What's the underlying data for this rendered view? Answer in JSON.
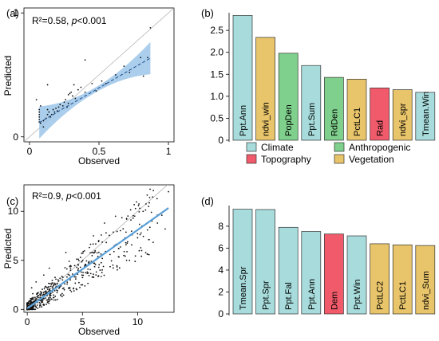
{
  "colors": {
    "Climate": "#a8dcdc",
    "Anthropogenic": "#7fd08c",
    "Topography": "#f05a6a",
    "Vegetation": "#e8c46a",
    "fit_line": "#1e4f8a",
    "ci_band": "#8fbde6",
    "points": "#111111",
    "identity": "#aaaaaa"
  },
  "legend": {
    "items": [
      {
        "name": "Climate",
        "color": "#a8dcdc"
      },
      {
        "name": "Anthropogenic",
        "color": "#7fd08c"
      },
      {
        "name": "Topography",
        "color": "#f05a6a"
      },
      {
        "name": "Vegetation",
        "color": "#e8c46a"
      }
    ]
  },
  "chart_data": [
    {
      "panel": "(a)",
      "type": "scatter",
      "annotation": {
        "r2": "R²=0.58, ",
        "p_letter": "p",
        "p_rest": "<0.001"
      },
      "xlabel": "Observed",
      "ylabel": "Predicted",
      "xlim": [
        -0.04,
        1.04
      ],
      "ylim": [
        -0.04,
        1.04
      ],
      "xticks": [
        0,
        0.5,
        1
      ],
      "xtick_labels": [
        "0",
        "0.5",
        "1"
      ],
      "yticks": [
        0,
        1
      ],
      "ytick_labels": [
        "0",
        "1"
      ],
      "fit": {
        "slope": 0.65,
        "intercept": 0.07,
        "x_range": [
          0.07,
          0.87
        ]
      },
      "points": [
        [
          0.07,
          0.12
        ],
        [
          0.07,
          0.14
        ],
        [
          0.07,
          0.16
        ],
        [
          0.07,
          0.18
        ],
        [
          0.07,
          0.2
        ],
        [
          0.07,
          0.22
        ],
        [
          0.08,
          0.25
        ],
        [
          0.08,
          0.11
        ],
        [
          0.1,
          0.13
        ],
        [
          0.12,
          0.15
        ],
        [
          0.13,
          0.18
        ],
        [
          0.13,
          0.22
        ],
        [
          0.13,
          0.42
        ],
        [
          0.14,
          0.2
        ],
        [
          0.15,
          0.16
        ],
        [
          0.16,
          0.18
        ],
        [
          0.17,
          0.22
        ],
        [
          0.18,
          0.2
        ],
        [
          0.19,
          0.23
        ],
        [
          0.2,
          0.21
        ],
        [
          0.21,
          0.24
        ],
        [
          0.22,
          0.26
        ],
        [
          0.24,
          0.25
        ],
        [
          0.25,
          0.28
        ],
        [
          0.26,
          0.3
        ],
        [
          0.27,
          0.24
        ],
        [
          0.28,
          0.27
        ],
        [
          0.28,
          0.34
        ],
        [
          0.29,
          0.35
        ],
        [
          0.3,
          0.36
        ],
        [
          0.31,
          0.33
        ],
        [
          0.32,
          0.42
        ],
        [
          0.33,
          0.31
        ],
        [
          0.35,
          0.38
        ],
        [
          0.37,
          0.4
        ],
        [
          0.4,
          0.36
        ],
        [
          0.45,
          0.43
        ],
        [
          0.48,
          0.37
        ],
        [
          0.52,
          0.45
        ],
        [
          0.55,
          0.43
        ],
        [
          0.62,
          0.5
        ],
        [
          0.68,
          0.57
        ],
        [
          0.72,
          0.52
        ],
        [
          0.8,
          0.64
        ],
        [
          0.85,
          0.64
        ],
        [
          0.87,
          0.88
        ],
        [
          0.82,
          0.49
        ],
        [
          0.05,
          0.3
        ],
        [
          0.4,
          0.62
        ],
        [
          0.1,
          0.08
        ]
      ]
    },
    {
      "panel": "(b)",
      "type": "bar",
      "categories": [
        "Ppt.Ann",
        "ndvi_win",
        "PopDen",
        "Ppt.Sum",
        "RdDen",
        "PctLC1",
        "Rad",
        "ndvi_spr",
        "Tmean.Win"
      ],
      "values": [
        2.84,
        2.34,
        1.98,
        1.7,
        1.43,
        1.39,
        1.19,
        1.15,
        1.09
      ],
      "groups": [
        "Climate",
        "Vegetation",
        "Anthropogenic",
        "Climate",
        "Anthropogenic",
        "Vegetation",
        "Topography",
        "Vegetation",
        "Climate"
      ],
      "ylim": [
        0,
        2.85
      ],
      "yticks": [
        0,
        0.5,
        1.0,
        1.5,
        2.0,
        2.5
      ],
      "ytick_labels": [
        "0",
        "0.5",
        "1.0",
        "1.5",
        "2.0",
        "2.5"
      ]
    },
    {
      "panel": "(c)",
      "type": "scatter",
      "annotation": {
        "r2": "R²=0.9, ",
        "p_letter": "p",
        "p_rest": "<0.001"
      },
      "xlabel": "Observed",
      "ylabel": "Predicted",
      "xlim": [
        -0.3,
        13.3
      ],
      "ylim": [
        -0.3,
        12.7
      ],
      "xticks": [
        0,
        5,
        10
      ],
      "xtick_labels": [
        "0",
        "5",
        "10"
      ],
      "yticks": [
        0,
        5,
        10
      ],
      "ytick_labels": [
        "0",
        "5",
        "10"
      ],
      "fit": {
        "slope": 0.8,
        "intercept": 0.1,
        "x_range": [
          0,
          12.8
        ]
      },
      "points": [
        [
          0.1,
          0.1
        ],
        [
          0.2,
          0.3
        ],
        [
          0.3,
          0.2
        ],
        [
          0.4,
          0.5
        ],
        [
          0.5,
          0.3
        ],
        [
          0.2,
          0.6
        ],
        [
          0.6,
          0.8
        ],
        [
          0.7,
          0.5
        ],
        [
          0.8,
          1.0
        ],
        [
          0.3,
          1.1
        ],
        [
          0.9,
          0.7
        ],
        [
          1.0,
          1.2
        ],
        [
          1.1,
          0.9
        ],
        [
          1.2,
          1.5
        ],
        [
          1.3,
          1.1
        ],
        [
          0.5,
          1.6
        ],
        [
          1.5,
          1.3
        ],
        [
          1.6,
          1.8
        ],
        [
          1.8,
          1.4
        ],
        [
          2.0,
          2.0
        ],
        [
          2.1,
          1.6
        ],
        [
          2.3,
          2.3
        ],
        [
          2.5,
          1.9
        ],
        [
          2.7,
          2.6
        ],
        [
          0.4,
          2.2
        ],
        [
          3.0,
          2.4
        ],
        [
          3.2,
          3.0
        ],
        [
          3.4,
          2.6
        ],
        [
          3.6,
          3.3
        ],
        [
          3.9,
          3.0
        ],
        [
          4.1,
          3.6
        ],
        [
          4.4,
          3.3
        ],
        [
          4.6,
          4.0
        ],
        [
          4.9,
          3.8
        ],
        [
          5.2,
          4.4
        ],
        [
          5.5,
          4.1
        ],
        [
          5.8,
          4.9
        ],
        [
          6.1,
          4.7
        ],
        [
          6.4,
          5.4
        ],
        [
          6.8,
          5.2
        ],
        [
          7.1,
          5.9
        ],
        [
          7.5,
          5.6
        ],
        [
          7.9,
          6.5
        ],
        [
          8.3,
          6.2
        ],
        [
          8.7,
          7.1
        ],
        [
          9.1,
          6.9
        ],
        [
          9.5,
          7.6
        ],
        [
          10.0,
          7.3
        ],
        [
          10.4,
          8.5
        ],
        [
          10.9,
          8.1
        ],
        [
          11.3,
          9.0
        ],
        [
          11.8,
          8.8
        ],
        [
          12.2,
          9.6
        ],
        [
          12.6,
          10.2
        ],
        [
          12.8,
          12.0
        ],
        [
          2.0,
          4.2
        ],
        [
          3.5,
          5.8
        ],
        [
          5.0,
          2.5
        ],
        [
          7.0,
          8.8
        ],
        [
          9.0,
          5.0
        ],
        [
          1.5,
          3.5
        ],
        [
          6.0,
          7.5
        ],
        [
          4.0,
          1.8
        ],
        [
          8.0,
          9.5
        ],
        [
          0.8,
          2.8
        ],
        [
          11.0,
          10.5
        ],
        [
          12.5,
          8.2
        ],
        [
          10.5,
          10.0
        ],
        [
          3.8,
          4.9
        ],
        [
          6.6,
          4.0
        ]
      ]
    },
    {
      "panel": "(d)",
      "type": "bar",
      "categories": [
        "Tmean.Spr",
        "Ppt.Spr",
        "Ppt.Fal",
        "Ppt.Ann",
        "Dem",
        "Ppt.Win",
        "PctLC2",
        "PctLC1",
        "ndvi_Sum"
      ],
      "values": [
        9.55,
        9.52,
        7.9,
        7.52,
        7.29,
        7.12,
        6.4,
        6.3,
        6.24
      ],
      "groups": [
        "Climate",
        "Climate",
        "Climate",
        "Climate",
        "Topography",
        "Climate",
        "Vegetation",
        "Vegetation",
        "Vegetation"
      ],
      "ylim": [
        0,
        9.6
      ],
      "yticks": [
        0,
        2,
        4,
        6,
        8
      ],
      "ytick_labels": [
        "0",
        "2",
        "4",
        "6",
        "8"
      ]
    }
  ]
}
